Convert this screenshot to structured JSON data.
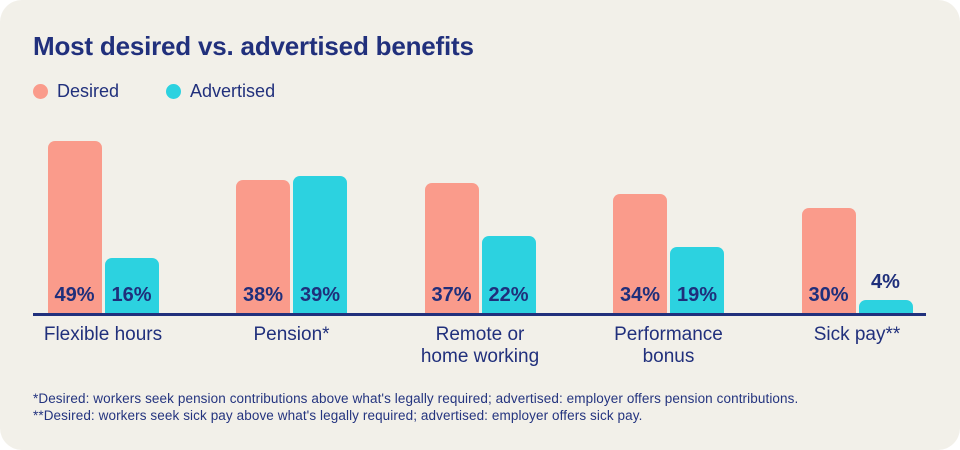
{
  "chart_data": {
    "type": "bar",
    "title": "Most desired vs. advertised benefits",
    "categories": [
      "Flexible hours",
      "Pension*",
      "Remote or home working",
      "Performance bonus",
      "Sick pay**"
    ],
    "category_lines": [
      [
        "Flexible hours"
      ],
      [
        "Pension*"
      ],
      [
        "Remote or",
        "home working"
      ],
      [
        "Performance",
        "bonus"
      ],
      [
        "Sick pay**"
      ]
    ],
    "series": [
      {
        "name": "Desired",
        "color": "#FA9B8B",
        "values": [
          49,
          38,
          37,
          34,
          30
        ]
      },
      {
        "name": "Advertised",
        "color": "#2CD2E0",
        "values": [
          16,
          39,
          22,
          19,
          4
        ]
      }
    ],
    "value_suffix": "%",
    "ylim": [
      0,
      50
    ],
    "grid": false,
    "legend_position": "top-left",
    "value_label_style": "inside bar bottom; above bar when bar too short"
  },
  "footnotes": [
    "*Desired: workers seek pension contributions above what's legally required; advertised: employer offers pension contributions.",
    "**Desired: workers seek sick pay above what's legally required; advertised: employer offers sick pay."
  ],
  "colors": {
    "page_background": "#FFFFFF",
    "card_background": "#F2F0E9",
    "text_navy": "#21307C",
    "axis_line": "#21307C",
    "desired_bar": "#FA9B8B",
    "advertised_bar": "#2CD2E0"
  }
}
